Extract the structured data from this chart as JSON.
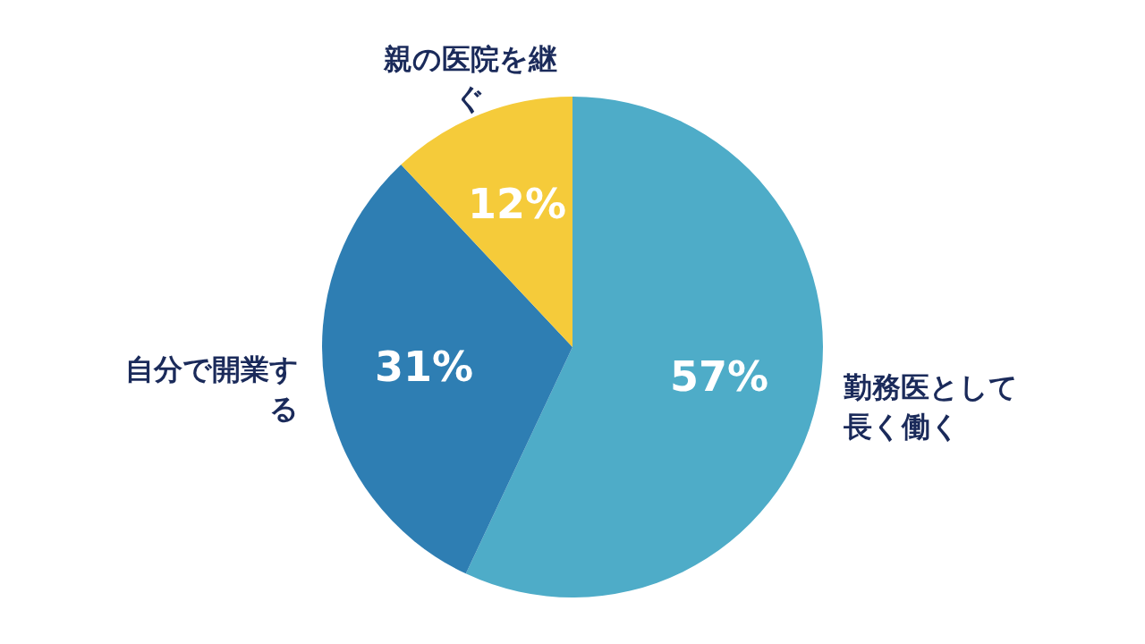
{
  "chart_data": {
    "type": "pie",
    "categories": [
      "勤務医として長く働く",
      "自分で開業する",
      "親の医院を継ぐ"
    ],
    "values": [
      57,
      31,
      12
    ],
    "colors": [
      "#4eacc8",
      "#2e7eb3",
      "#f5cb3a"
    ],
    "value_labels": [
      "57%",
      "31%",
      "12%"
    ],
    "legend": false
  }
}
